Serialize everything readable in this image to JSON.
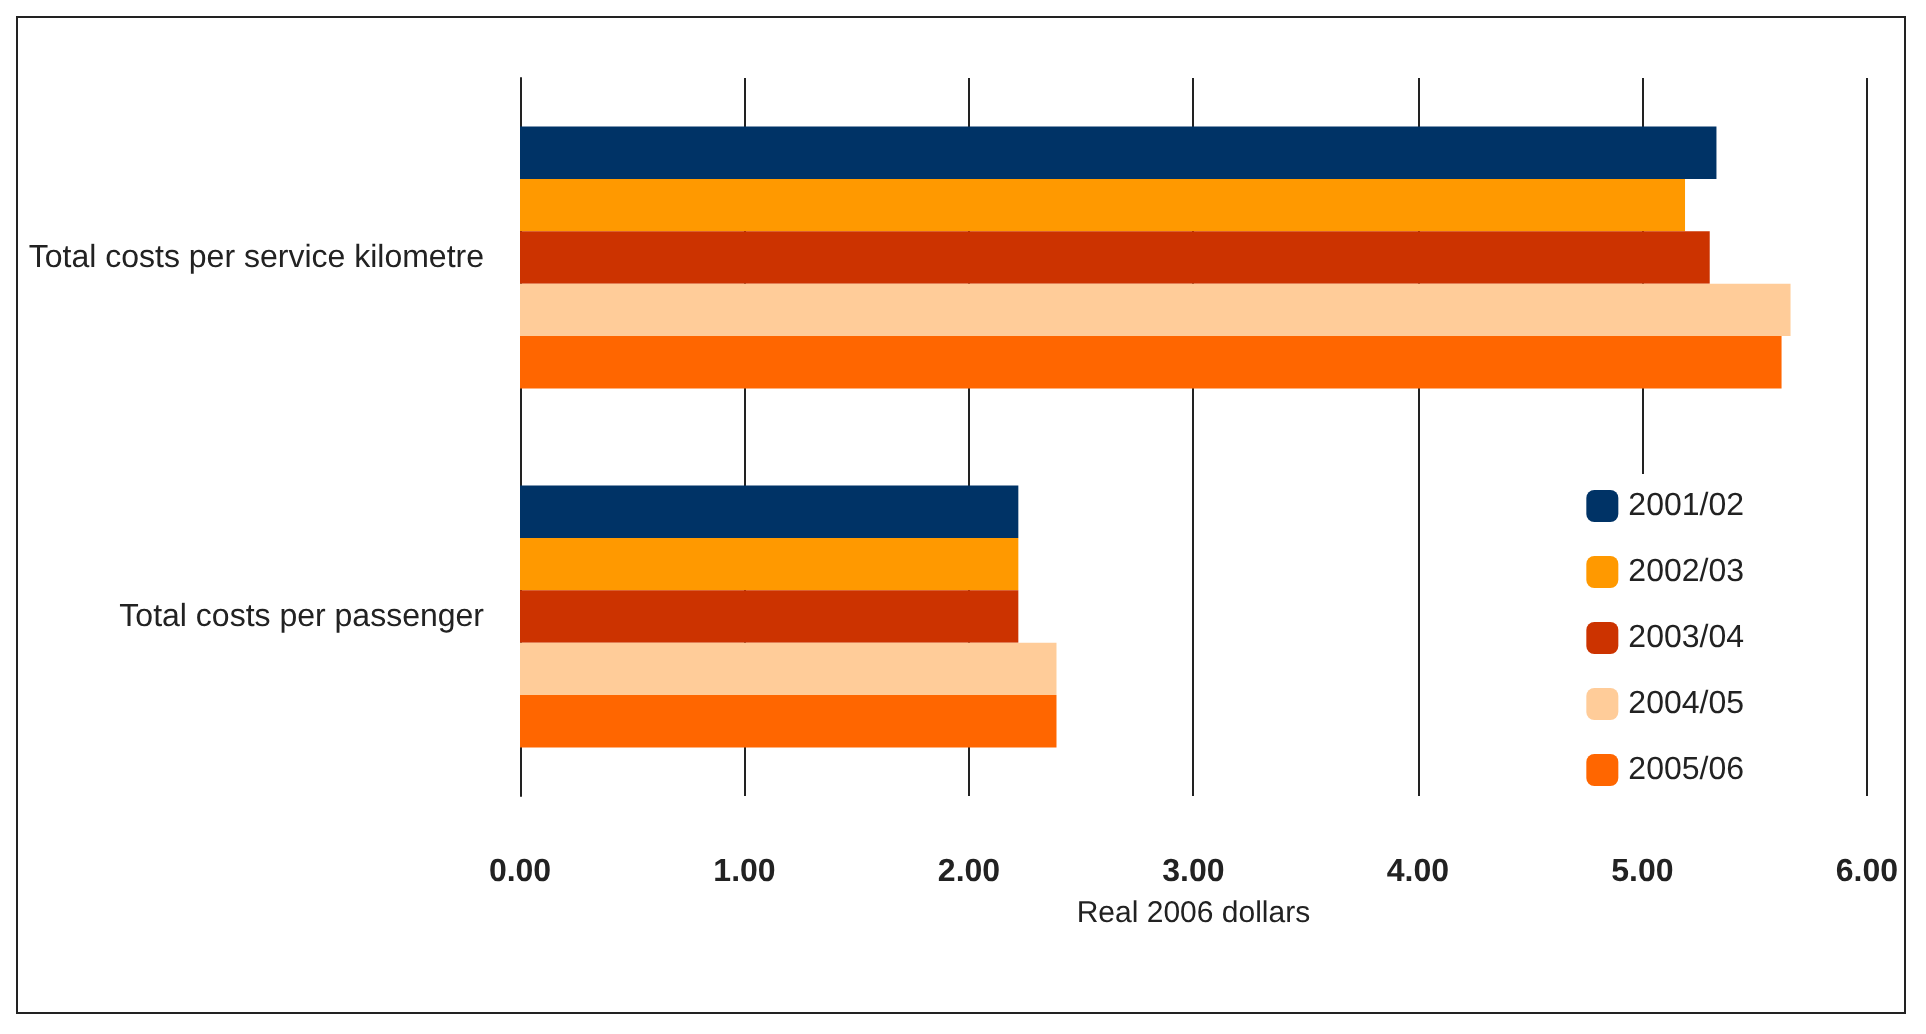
{
  "chart_data": {
    "type": "bar",
    "orientation": "horizontal",
    "xlabel": "Real 2006 dollars",
    "categories": [
      "Total costs per service kilometre",
      "Total costs per passenger"
    ],
    "series": [
      {
        "name": "2001/02",
        "color": "#003366",
        "values": [
          5.33,
          2.22
        ]
      },
      {
        "name": "2002/03",
        "color": "#ff9900",
        "values": [
          5.19,
          2.22
        ]
      },
      {
        "name": "2003/04",
        "color": "#cc3300",
        "values": [
          5.3,
          2.22
        ]
      },
      {
        "name": "2004/05",
        "color": "#ffcc99",
        "values": [
          5.66,
          2.39
        ]
      },
      {
        "name": "2005/06",
        "color": "#ff6600",
        "values": [
          5.62,
          2.39
        ]
      }
    ],
    "xlim": [
      0,
      6
    ],
    "xticks": [
      {
        "value": 0,
        "label": "0.00"
      },
      {
        "value": 1,
        "label": "1.00"
      },
      {
        "value": 2,
        "label": "2.00"
      },
      {
        "value": 3,
        "label": "3.00"
      },
      {
        "value": 4,
        "label": "4.00"
      },
      {
        "value": 5,
        "label": "5.00"
      },
      {
        "value": 6,
        "label": "6.00"
      }
    ],
    "grid": "x",
    "legend": "bottom right"
  }
}
